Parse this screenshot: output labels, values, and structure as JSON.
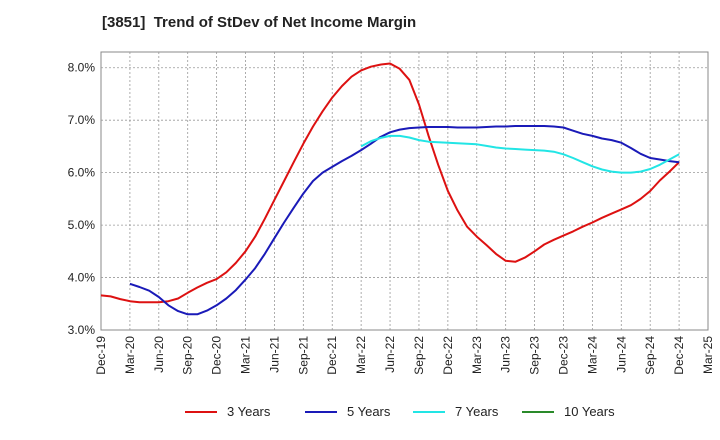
{
  "chart_data": {
    "type": "line",
    "title": "[3851]  Trend of StDev of Net Income Margin",
    "xlabel": "",
    "ylabel": "",
    "x_ticks": [
      "Dec-19",
      "Mar-20",
      "Jun-20",
      "Sep-20",
      "Dec-20",
      "Mar-21",
      "Jun-21",
      "Sep-21",
      "Dec-21",
      "Mar-22",
      "Jun-22",
      "Sep-22",
      "Dec-22",
      "Mar-23",
      "Jun-23",
      "Sep-23",
      "Dec-23",
      "Mar-24",
      "Jun-24",
      "Sep-24",
      "Dec-24",
      "Mar-25"
    ],
    "y_ticks": [
      "3.0%",
      "4.0%",
      "5.0%",
      "6.0%",
      "7.0%",
      "8.0%"
    ],
    "ylim": [
      3.0,
      8.3
    ],
    "grid": true,
    "legend_position": "bottom",
    "series": [
      {
        "name": "3 Years",
        "color": "#dd1111",
        "x": [
          "Dec-19",
          "Jan-20",
          "Feb-20",
          "Mar-20",
          "Apr-20",
          "May-20",
          "Jun-20",
          "Jul-20",
          "Aug-20",
          "Sep-20",
          "Oct-20",
          "Nov-20",
          "Dec-20",
          "Jan-21",
          "Feb-21",
          "Mar-21",
          "Apr-21",
          "May-21",
          "Jun-21",
          "Jul-21",
          "Aug-21",
          "Sep-21",
          "Oct-21",
          "Nov-21",
          "Dec-21",
          "Jan-22",
          "Feb-22",
          "Mar-22",
          "Apr-22",
          "May-22",
          "Jun-22",
          "Jul-22",
          "Aug-22",
          "Sep-22",
          "Oct-22",
          "Nov-22",
          "Dec-22",
          "Jan-23",
          "Feb-23",
          "Mar-23",
          "Apr-23",
          "May-23",
          "Jun-23",
          "Jul-23",
          "Aug-23",
          "Sep-23",
          "Oct-23",
          "Nov-23",
          "Dec-23",
          "Jan-24",
          "Feb-24",
          "Mar-24",
          "Apr-24",
          "May-24",
          "Jun-24",
          "Jul-24",
          "Aug-24",
          "Sep-24",
          "Oct-24",
          "Nov-24",
          "Dec-24"
        ],
        "values": [
          3.66,
          3.64,
          3.59,
          3.55,
          3.53,
          3.53,
          3.53,
          3.55,
          3.6,
          3.71,
          3.81,
          3.9,
          3.97,
          4.1,
          4.28,
          4.5,
          4.78,
          5.12,
          5.48,
          5.84,
          6.2,
          6.55,
          6.88,
          7.17,
          7.43,
          7.65,
          7.83,
          7.95,
          8.02,
          8.06,
          8.08,
          7.98,
          7.77,
          7.3,
          6.7,
          6.15,
          5.65,
          5.28,
          4.97,
          4.78,
          4.62,
          4.45,
          4.32,
          4.3,
          4.38,
          4.5,
          4.63,
          4.72,
          4.8,
          4.88,
          4.97,
          5.05,
          5.14,
          5.22,
          5.3,
          5.38,
          5.5,
          5.65,
          5.85,
          6.02,
          6.2
        ]
      },
      {
        "name": "5 Years",
        "color": "#1a1ab8",
        "x": [
          "Mar-20",
          "Apr-20",
          "May-20",
          "Jun-20",
          "Jul-20",
          "Aug-20",
          "Sep-20",
          "Oct-20",
          "Nov-20",
          "Dec-20",
          "Jan-21",
          "Feb-21",
          "Mar-21",
          "Apr-21",
          "May-21",
          "Jun-21",
          "Jul-21",
          "Aug-21",
          "Sep-21",
          "Oct-21",
          "Nov-21",
          "Dec-21",
          "Jan-22",
          "Feb-22",
          "Mar-22",
          "Apr-22",
          "May-22",
          "Jun-22",
          "Jul-22",
          "Aug-22",
          "Sep-22",
          "Oct-22",
          "Nov-22",
          "Dec-22",
          "Jan-23",
          "Feb-23",
          "Mar-23",
          "Apr-23",
          "May-23",
          "Jun-23",
          "Jul-23",
          "Aug-23",
          "Sep-23",
          "Oct-23",
          "Nov-23",
          "Dec-23",
          "Jan-24",
          "Feb-24",
          "Mar-24",
          "Apr-24",
          "May-24",
          "Jun-24",
          "Jul-24",
          "Aug-24",
          "Sep-24",
          "Oct-24",
          "Nov-24",
          "Dec-24"
        ],
        "values": [
          3.88,
          3.82,
          3.75,
          3.63,
          3.47,
          3.36,
          3.3,
          3.3,
          3.37,
          3.47,
          3.6,
          3.76,
          3.96,
          4.18,
          4.45,
          4.75,
          5.05,
          5.33,
          5.6,
          5.84,
          6.0,
          6.11,
          6.22,
          6.32,
          6.43,
          6.55,
          6.68,
          6.77,
          6.82,
          6.85,
          6.86,
          6.87,
          6.87,
          6.87,
          6.86,
          6.86,
          6.86,
          6.87,
          6.88,
          6.88,
          6.89,
          6.89,
          6.89,
          6.89,
          6.88,
          6.86,
          6.8,
          6.74,
          6.7,
          6.65,
          6.62,
          6.57,
          6.47,
          6.36,
          6.28,
          6.25,
          6.22,
          6.2
        ]
      },
      {
        "name": "7 Years",
        "color": "#22e5e5",
        "x": [
          "Mar-22",
          "Apr-22",
          "May-22",
          "Jun-22",
          "Jul-22",
          "Aug-22",
          "Sep-22",
          "Oct-22",
          "Nov-22",
          "Dec-22",
          "Jan-23",
          "Feb-23",
          "Mar-23",
          "Apr-23",
          "May-23",
          "Jun-23",
          "Jul-23",
          "Aug-23",
          "Sep-23",
          "Oct-23",
          "Nov-23",
          "Dec-23",
          "Jan-24",
          "Feb-24",
          "Mar-24",
          "Apr-24",
          "May-24",
          "Jun-24",
          "Jul-24",
          "Aug-24",
          "Sep-24",
          "Oct-24",
          "Nov-24",
          "Dec-24"
        ],
        "values": [
          6.5,
          6.6,
          6.66,
          6.7,
          6.7,
          6.67,
          6.62,
          6.59,
          6.58,
          6.57,
          6.56,
          6.55,
          6.54,
          6.51,
          6.48,
          6.46,
          6.45,
          6.44,
          6.43,
          6.42,
          6.4,
          6.35,
          6.28,
          6.2,
          6.12,
          6.06,
          6.02,
          6.0,
          6.0,
          6.02,
          6.07,
          6.15,
          6.25,
          6.35
        ]
      },
      {
        "name": "10 Years",
        "color": "#2a8a2a",
        "x": [],
        "values": []
      }
    ]
  }
}
